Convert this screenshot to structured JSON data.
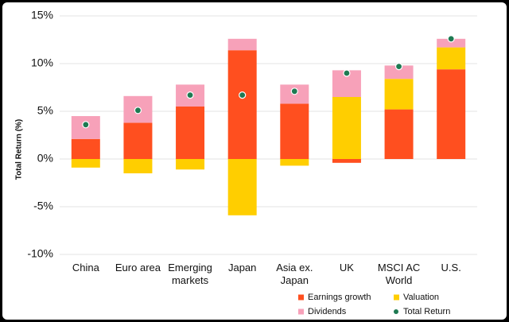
{
  "chart_data": {
    "type": "stacked_bar",
    "y_label": "Total Return (%)",
    "categories": [
      [
        "China"
      ],
      [
        "Euro area"
      ],
      [
        "Emerging",
        "markets"
      ],
      [
        "Japan"
      ],
      [
        "Asia ex.",
        "Japan"
      ],
      [
        "UK"
      ],
      [
        "MSCI AC",
        "World"
      ],
      [
        "U.S."
      ]
    ],
    "series": [
      {
        "name": "Earnings growth",
        "color": "#ff4f1f",
        "values": [
          2.1,
          3.8,
          5.5,
          11.4,
          5.8,
          -0.4,
          5.2,
          9.4
        ]
      },
      {
        "name": "Valuation",
        "color": "#ffce00",
        "values": [
          -0.9,
          -1.5,
          -1.1,
          -5.9,
          -0.7,
          6.5,
          3.2,
          2.3
        ]
      },
      {
        "name": "Dividends",
        "color": "#f7a1b9",
        "values": [
          2.4,
          2.8,
          2.3,
          1.2,
          2.0,
          2.8,
          1.4,
          0.9
        ]
      },
      {
        "name": "Total Return",
        "color": "#1e7a52",
        "type": "scatter",
        "values": [
          3.6,
          5.1,
          6.7,
          6.7,
          7.1,
          9.0,
          9.7,
          12.6
        ]
      }
    ],
    "ylim": [
      -11,
      15
    ],
    "yticks": [
      {
        "value": -10,
        "label": "-10%"
      },
      {
        "value": -5,
        "label": "-5%"
      },
      {
        "value": 0,
        "label": "0%"
      },
      {
        "value": 5,
        "label": "5%"
      },
      {
        "value": 10,
        "label": "10%"
      },
      {
        "value": 15,
        "label": "15%"
      }
    ],
    "grid": true,
    "legend": "bottom-right"
  }
}
